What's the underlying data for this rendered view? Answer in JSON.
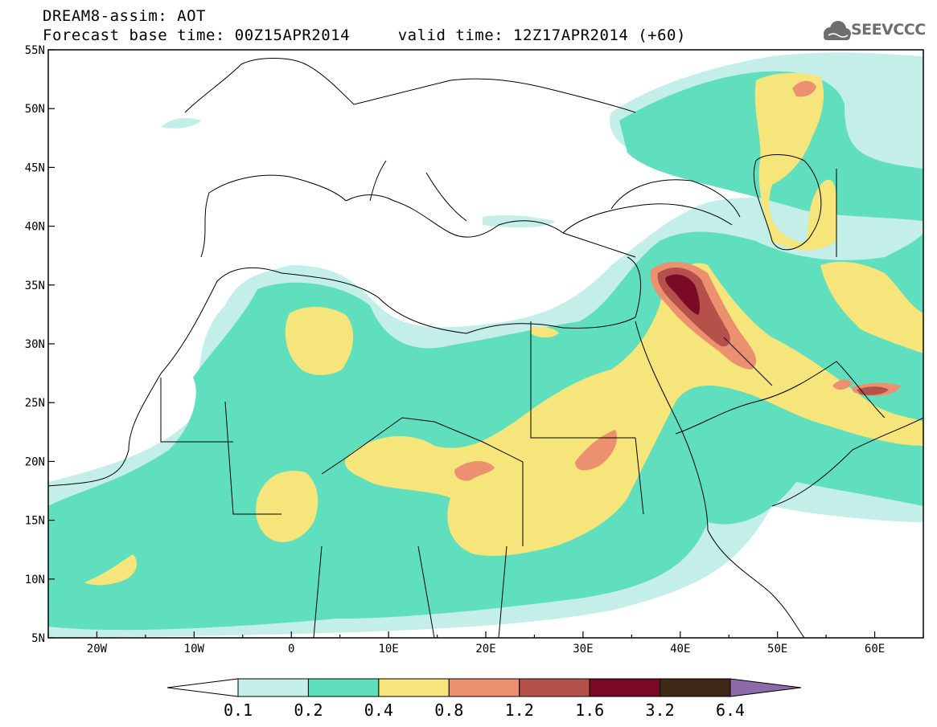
{
  "header": {
    "title_line1": "DREAM8-assim: AOT",
    "title_line2": "Forecast base time: 00Z15APR2014     valid time: 12Z17APR2014 (+60)"
  },
  "logo": {
    "text": "SEEVCCC",
    "icon": "cloud-icon",
    "color": "#6e6e6e"
  },
  "axes": {
    "lon_ticks": [
      "20W",
      "10W",
      "0",
      "10E",
      "20E",
      "30E",
      "40E",
      "50E",
      "60E"
    ],
    "lat_ticks": [
      "55N",
      "50N",
      "45N",
      "40N",
      "35N",
      "30N",
      "25N",
      "20N",
      "15N",
      "10N",
      "5N"
    ]
  },
  "colorbar": {
    "labels": [
      "0.1",
      "0.2",
      "0.4",
      "0.8",
      "1.2",
      "1.6",
      "3.2",
      "6.4"
    ],
    "colors": [
      "#ffffff",
      "#c3efe8",
      "#5fdfbd",
      "#f5e57a",
      "#eb9170",
      "#b5504a",
      "#7a0a25",
      "#3f2816",
      "#8d6ba8"
    ]
  }
}
